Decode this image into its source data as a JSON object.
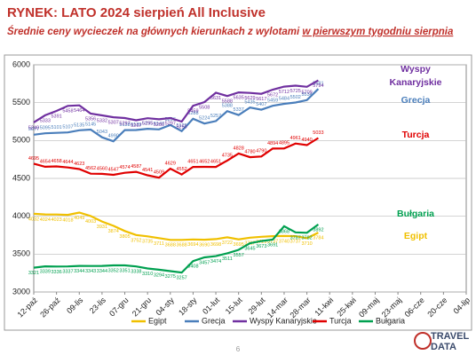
{
  "header": {
    "title": "RYNEK: LATO 2024 sierpień All Inclusive",
    "subtitle": "Średnie ceny wycieczek na głównych kierunkach z wylotami",
    "subtitle_underlined": "w pierwszym tygodniu sierpnia"
  },
  "page_number": "6",
  "logo": [
    "TRAVEL",
    "DATA"
  ],
  "chart_data": {
    "type": "line",
    "categories": [
      "12-paź",
      null,
      "26-paź",
      null,
      "09-lis",
      null,
      "23-lis",
      null,
      "07-gru",
      null,
      "21-gru",
      null,
      "04-sty",
      null,
      "18-sty",
      null,
      "01-lut",
      null,
      "15-lut",
      null,
      "29-lut",
      null,
      "14-mar",
      null,
      "28-mar",
      null,
      "11-kwi",
      null,
      "25-kwi",
      null,
      "09-maj",
      null,
      "23-maj",
      null,
      "06-cze",
      null,
      "20-cze",
      null,
      "04-lip"
    ],
    "ylim": [
      3000,
      6000
    ],
    "yticks": [
      3000,
      3500,
      4000,
      4500,
      5000,
      5500,
      6000
    ],
    "grid": true,
    "annotations": [
      {
        "text": "Wyspy",
        "color": "#7030a0"
      },
      {
        "text": "Kanaryjskie",
        "color": "#7030a0"
      },
      {
        "text": "Grecja",
        "color": "#4a7ebb"
      },
      {
        "text": "Turcja",
        "color": "#e00000"
      },
      {
        "text": "Bułgaria",
        "color": "#00a050"
      },
      {
        "text": "Egipt",
        "color": "#f0c000"
      }
    ],
    "series": [
      {
        "name": "Egipt",
        "color": "#f0c000",
        "values": [
          4032,
          4024,
          4023,
          4018,
          4049,
          4003,
          3931,
          3874,
          3805,
          3752,
          3735,
          3711,
          3688,
          3688,
          3694,
          3690,
          3698,
          3722,
          3695,
          3717,
          3729,
          3737,
          3740,
          3737,
          3710,
          3784,
          null,
          null,
          null,
          null,
          null,
          null,
          null,
          null,
          null,
          null,
          null,
          null,
          null
        ]
      },
      {
        "name": "Grecja",
        "color": "#4a7ebb",
        "values": [
          5077,
          5095,
          5101,
          5107,
          5135,
          5145,
          5043,
          4990,
          5138,
          5139,
          5155,
          5147,
          5206,
          5125,
          5288,
          5224,
          5257,
          5388,
          5337,
          5435,
          5407,
          5459,
          5484,
          5502,
          5534,
          5681,
          null,
          null,
          null,
          null,
          null,
          null,
          null,
          null,
          null,
          null,
          null,
          null,
          null
        ]
      },
      {
        "name": "Wyspy Kanaryjskie",
        "color": "#7030a0",
        "values": [
          5240,
          5333,
          5391,
          5458,
          5464,
          5356,
          5332,
          5307,
          5297,
          5267,
          5295,
          5280,
          5297,
          5250,
          5459,
          5508,
          5631,
          5588,
          5635,
          5629,
          5617,
          5672,
          5712,
          5725,
          5709,
          5794,
          null,
          null,
          null,
          null,
          null,
          null,
          null,
          null,
          null,
          null,
          null,
          null,
          null
        ]
      },
      {
        "name": "Turcja",
        "color": "#e00000",
        "values": [
          4695,
          4654,
          4658,
          4644,
          4623,
          4562,
          4560,
          4547,
          4574,
          4587,
          4541,
          4509,
          4629,
          4552,
          4651,
          4652,
          4651,
          4735,
          4828,
          4780,
          4790,
          4894,
          4895,
          4961,
          4940,
          5033,
          null,
          null,
          null,
          null,
          null,
          null,
          null,
          null,
          null,
          null,
          null,
          null,
          null
        ]
      },
      {
        "name": "Bułgaria",
        "color": "#00a050",
        "values": [
          3321,
          3339,
          3336,
          3337,
          3344,
          3343,
          3344,
          3352,
          3351,
          3338,
          3310,
          3294,
          3275,
          3257,
          3408,
          3457,
          3474,
          3511,
          3557,
          3645,
          3673,
          3691,
          3868,
          3787,
          3782,
          3892,
          null,
          null,
          null,
          null,
          null,
          null,
          null,
          null,
          null,
          null,
          null,
          null,
          null
        ]
      }
    ]
  }
}
